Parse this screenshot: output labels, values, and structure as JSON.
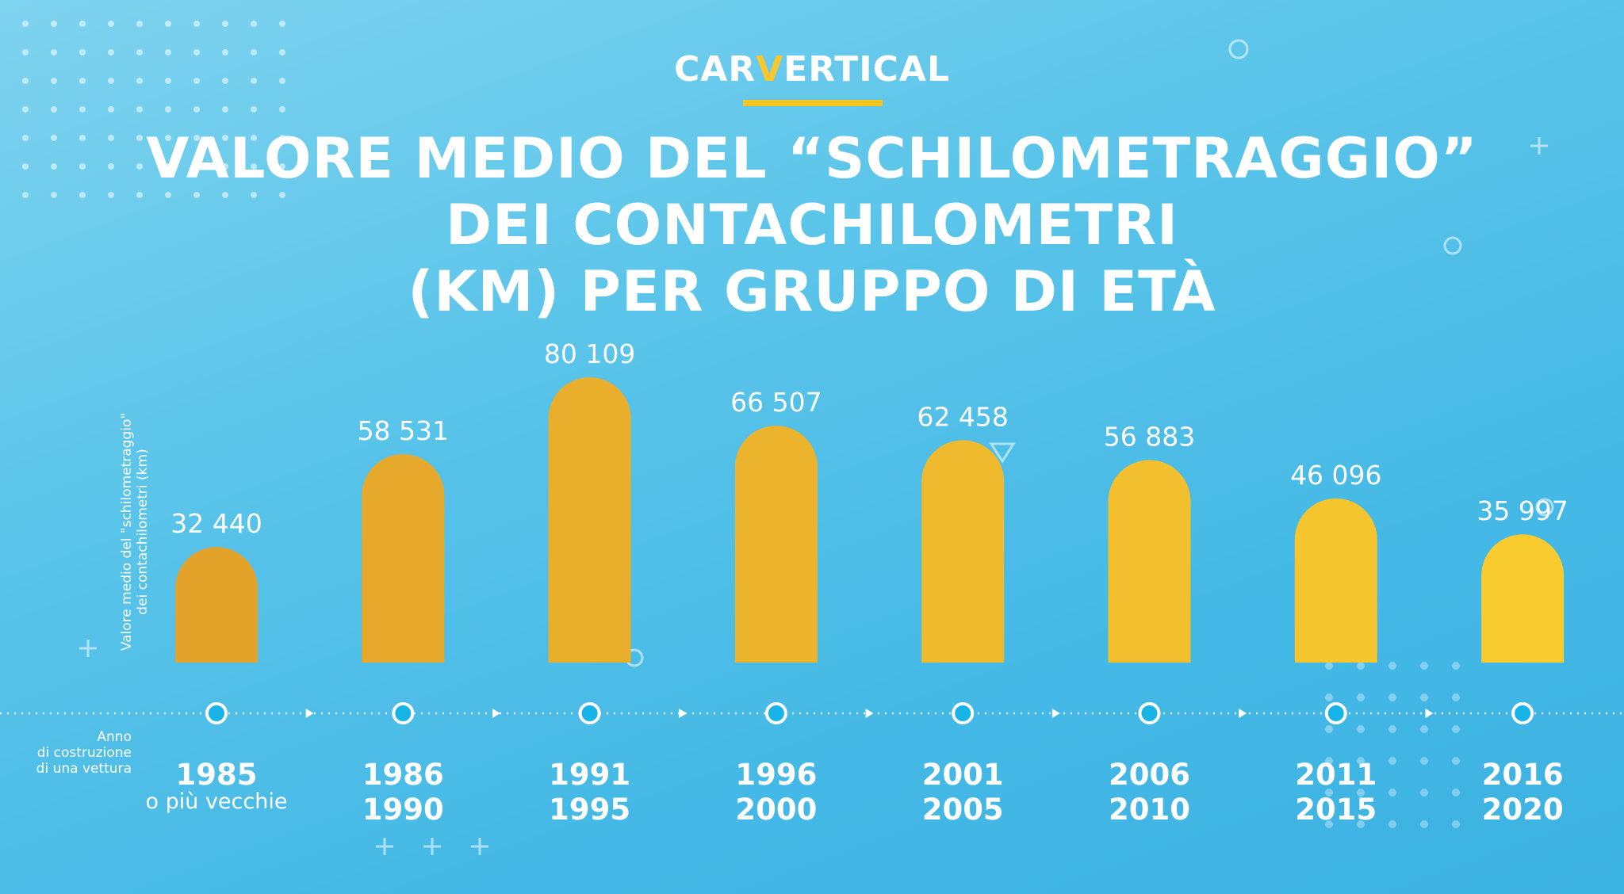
{
  "logo": {
    "prefix": "CAR",
    "accent": "V",
    "suffix": "ERTICAL"
  },
  "title_lines": [
    "VALORE MEDIO DEL “SCHILOMETRAGGIO”",
    "DEI CONTACHILOMETRI",
    "(KM) PER GRUPPO DI ETÀ"
  ],
  "annotation_lines": [
    "Anno",
    "di costruzione",
    "di una vettura"
  ],
  "colors": {
    "bar_start": "#E3A32A",
    "bar_end": "#F8CB2F",
    "text": "#FFFFFF",
    "marker": "#18B4E8",
    "logo_accent": "#F2C51F"
  },
  "chart_data": {
    "type": "bar",
    "title": "VALORE MEDIO DEL “SCHILOMETRAGGIO” DEI CONTACHILOMETRI (KM) PER GRUPPO DI ETÀ",
    "ylabel": "Valore medio del \"schilometraggio\" dei contachilometri (km)",
    "xlabel": "Anno di costruzione di una vettura",
    "categories": [
      [
        "1985",
        "o più vecchie"
      ],
      [
        "1986",
        "1990"
      ],
      [
        "1991",
        "1995"
      ],
      [
        "1996",
        "2000"
      ],
      [
        "2001",
        "2005"
      ],
      [
        "2006",
        "2010"
      ],
      [
        "2011",
        "2015"
      ],
      [
        "2016",
        "2020"
      ]
    ],
    "values": [
      32440,
      58531,
      80109,
      66507,
      62458,
      56883,
      46096,
      35997
    ],
    "value_labels": [
      "32 440",
      "58 531",
      "80 109",
      "66 507",
      "62 458",
      "56 883",
      "46 096",
      "35 997"
    ],
    "ylim": [
      0,
      80109
    ],
    "grid": false,
    "legend": "none"
  }
}
